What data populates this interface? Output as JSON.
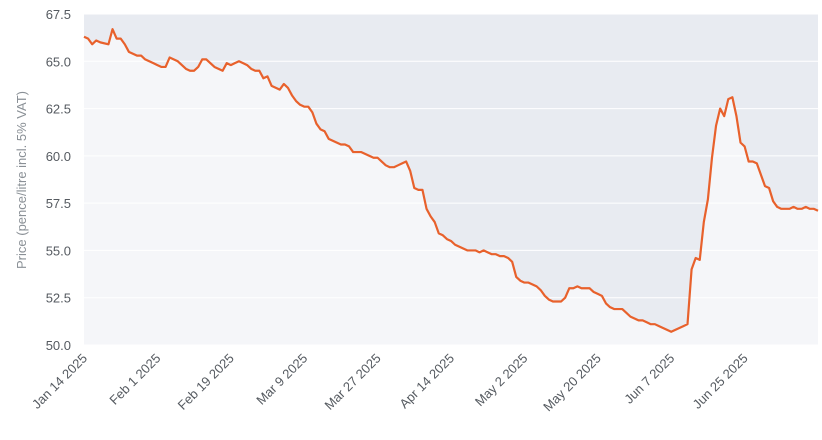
{
  "chart_data": {
    "type": "area",
    "title": "",
    "xlabel": "",
    "ylabel": "Price (pence/litre incl. 5% VAT)",
    "ylim": [
      50.0,
      67.5
    ],
    "xlim": [
      "2025-01-14",
      "2025-07-13"
    ],
    "yticks": [
      "50.0",
      "52.5",
      "55.0",
      "57.5",
      "60.0",
      "62.5",
      "65.0",
      "67.5"
    ],
    "xticks": [
      {
        "date": "2025-01-14",
        "label": "Jan 14 2025"
      },
      {
        "date": "2025-02-01",
        "label": "Feb 1 2025"
      },
      {
        "date": "2025-02-19",
        "label": "Feb 19 2025"
      },
      {
        "date": "2025-03-09",
        "label": "Mar 9 2025"
      },
      {
        "date": "2025-03-27",
        "label": "Mar 27 2025"
      },
      {
        "date": "2025-04-14",
        "label": "Apr 14 2025"
      },
      {
        "date": "2025-05-02",
        "label": "May 2 2025"
      },
      {
        "date": "2025-05-20",
        "label": "May 20 2025"
      },
      {
        "date": "2025-06-07",
        "label": "Jun 7 2025"
      },
      {
        "date": "2025-06-25",
        "label": "Jun 25 2025"
      }
    ],
    "grid": true,
    "colors": {
      "line": "#e8612c",
      "area_above": "#e8ebf1",
      "area_below": "#f5f6f9",
      "grid": "#ffffff"
    },
    "series": [
      {
        "points": [
          [
            "2025-01-14",
            66.3
          ],
          [
            "2025-01-15",
            66.2
          ],
          [
            "2025-01-16",
            65.9
          ],
          [
            "2025-01-17",
            66.1
          ],
          [
            "2025-01-18",
            66.0
          ],
          [
            "2025-01-20",
            65.9
          ],
          [
            "2025-01-21",
            66.7
          ],
          [
            "2025-01-22",
            66.2
          ],
          [
            "2025-01-23",
            66.2
          ],
          [
            "2025-01-24",
            65.9
          ],
          [
            "2025-01-25",
            65.5
          ],
          [
            "2025-01-26",
            65.4
          ],
          [
            "2025-01-27",
            65.3
          ],
          [
            "2025-01-28",
            65.3
          ],
          [
            "2025-01-29",
            65.1
          ],
          [
            "2025-01-30",
            65.0
          ],
          [
            "2025-01-31",
            64.9
          ],
          [
            "2025-02-01",
            64.8
          ],
          [
            "2025-02-02",
            64.7
          ],
          [
            "2025-02-03",
            64.7
          ],
          [
            "2025-02-04",
            65.2
          ],
          [
            "2025-02-05",
            65.1
          ],
          [
            "2025-02-06",
            65.0
          ],
          [
            "2025-02-07",
            64.8
          ],
          [
            "2025-02-08",
            64.6
          ],
          [
            "2025-02-09",
            64.5
          ],
          [
            "2025-02-10",
            64.5
          ],
          [
            "2025-02-11",
            64.7
          ],
          [
            "2025-02-12",
            65.1
          ],
          [
            "2025-02-13",
            65.1
          ],
          [
            "2025-02-14",
            64.9
          ],
          [
            "2025-02-15",
            64.7
          ],
          [
            "2025-02-16",
            64.6
          ],
          [
            "2025-02-17",
            64.5
          ],
          [
            "2025-02-18",
            64.9
          ],
          [
            "2025-02-19",
            64.8
          ],
          [
            "2025-02-20",
            64.9
          ],
          [
            "2025-02-21",
            65.0
          ],
          [
            "2025-02-22",
            64.9
          ],
          [
            "2025-02-23",
            64.8
          ],
          [
            "2025-02-24",
            64.6
          ],
          [
            "2025-02-25",
            64.5
          ],
          [
            "2025-02-26",
            64.5
          ],
          [
            "2025-02-27",
            64.1
          ],
          [
            "2025-02-28",
            64.2
          ],
          [
            "2025-03-01",
            63.7
          ],
          [
            "2025-03-02",
            63.6
          ],
          [
            "2025-03-03",
            63.5
          ],
          [
            "2025-03-04",
            63.8
          ],
          [
            "2025-03-05",
            63.6
          ],
          [
            "2025-03-06",
            63.2
          ],
          [
            "2025-03-07",
            62.9
          ],
          [
            "2025-03-08",
            62.7
          ],
          [
            "2025-03-09",
            62.6
          ],
          [
            "2025-03-10",
            62.6
          ],
          [
            "2025-03-11",
            62.3
          ],
          [
            "2025-03-12",
            61.7
          ],
          [
            "2025-03-13",
            61.4
          ],
          [
            "2025-03-14",
            61.3
          ],
          [
            "2025-03-15",
            60.9
          ],
          [
            "2025-03-16",
            60.8
          ],
          [
            "2025-03-17",
            60.7
          ],
          [
            "2025-03-18",
            60.6
          ],
          [
            "2025-03-19",
            60.6
          ],
          [
            "2025-03-20",
            60.5
          ],
          [
            "2025-03-21",
            60.2
          ],
          [
            "2025-03-22",
            60.2
          ],
          [
            "2025-03-23",
            60.2
          ],
          [
            "2025-03-24",
            60.1
          ],
          [
            "2025-03-25",
            60.0
          ],
          [
            "2025-03-26",
            59.9
          ],
          [
            "2025-03-27",
            59.9
          ],
          [
            "2025-03-28",
            59.7
          ],
          [
            "2025-03-29",
            59.5
          ],
          [
            "2025-03-30",
            59.4
          ],
          [
            "2025-03-31",
            59.4
          ],
          [
            "2025-04-01",
            59.5
          ],
          [
            "2025-04-02",
            59.6
          ],
          [
            "2025-04-03",
            59.7
          ],
          [
            "2025-04-04",
            59.2
          ],
          [
            "2025-04-05",
            58.3
          ],
          [
            "2025-04-06",
            58.2
          ],
          [
            "2025-04-07",
            58.2
          ],
          [
            "2025-04-08",
            57.2
          ],
          [
            "2025-04-09",
            56.8
          ],
          [
            "2025-04-10",
            56.5
          ],
          [
            "2025-04-11",
            55.9
          ],
          [
            "2025-04-12",
            55.8
          ],
          [
            "2025-04-13",
            55.6
          ],
          [
            "2025-04-14",
            55.5
          ],
          [
            "2025-04-15",
            55.3
          ],
          [
            "2025-04-16",
            55.2
          ],
          [
            "2025-04-17",
            55.1
          ],
          [
            "2025-04-18",
            55.0
          ],
          [
            "2025-04-19",
            55.0
          ],
          [
            "2025-04-20",
            55.0
          ],
          [
            "2025-04-21",
            54.9
          ],
          [
            "2025-04-22",
            55.0
          ],
          [
            "2025-04-23",
            54.9
          ],
          [
            "2025-04-24",
            54.8
          ],
          [
            "2025-04-25",
            54.8
          ],
          [
            "2025-04-26",
            54.7
          ],
          [
            "2025-04-27",
            54.7
          ],
          [
            "2025-04-28",
            54.6
          ],
          [
            "2025-04-29",
            54.4
          ],
          [
            "2025-04-30",
            53.6
          ],
          [
            "2025-05-01",
            53.4
          ],
          [
            "2025-05-02",
            53.3
          ],
          [
            "2025-05-03",
            53.3
          ],
          [
            "2025-05-04",
            53.2
          ],
          [
            "2025-05-05",
            53.1
          ],
          [
            "2025-05-06",
            52.9
          ],
          [
            "2025-05-07",
            52.6
          ],
          [
            "2025-05-08",
            52.4
          ],
          [
            "2025-05-09",
            52.3
          ],
          [
            "2025-05-10",
            52.3
          ],
          [
            "2025-05-11",
            52.3
          ],
          [
            "2025-05-12",
            52.5
          ],
          [
            "2025-05-13",
            53.0
          ],
          [
            "2025-05-14",
            53.0
          ],
          [
            "2025-05-15",
            53.1
          ],
          [
            "2025-05-16",
            53.0
          ],
          [
            "2025-05-17",
            53.0
          ],
          [
            "2025-05-18",
            53.0
          ],
          [
            "2025-05-19",
            52.8
          ],
          [
            "2025-05-20",
            52.7
          ],
          [
            "2025-05-21",
            52.6
          ],
          [
            "2025-05-22",
            52.2
          ],
          [
            "2025-05-23",
            52.0
          ],
          [
            "2025-05-24",
            51.9
          ],
          [
            "2025-05-25",
            51.9
          ],
          [
            "2025-05-26",
            51.9
          ],
          [
            "2025-05-27",
            51.7
          ],
          [
            "2025-05-28",
            51.5
          ],
          [
            "2025-05-29",
            51.4
          ],
          [
            "2025-05-30",
            51.3
          ],
          [
            "2025-05-31",
            51.3
          ],
          [
            "2025-06-01",
            51.2
          ],
          [
            "2025-06-02",
            51.1
          ],
          [
            "2025-06-03",
            51.1
          ],
          [
            "2025-06-04",
            51.0
          ],
          [
            "2025-06-05",
            50.9
          ],
          [
            "2025-06-06",
            50.8
          ],
          [
            "2025-06-07",
            50.7
          ],
          [
            "2025-06-08",
            50.8
          ],
          [
            "2025-06-09",
            50.9
          ],
          [
            "2025-06-10",
            51.0
          ],
          [
            "2025-06-11",
            51.1
          ],
          [
            "2025-06-12",
            54.0
          ],
          [
            "2025-06-13",
            54.6
          ],
          [
            "2025-06-14",
            54.5
          ],
          [
            "2025-06-15",
            56.5
          ],
          [
            "2025-06-16",
            57.7
          ],
          [
            "2025-06-17",
            59.9
          ],
          [
            "2025-06-18",
            61.6
          ],
          [
            "2025-06-19",
            62.5
          ],
          [
            "2025-06-20",
            62.1
          ],
          [
            "2025-06-21",
            63.0
          ],
          [
            "2025-06-22",
            63.1
          ],
          [
            "2025-06-23",
            62.1
          ],
          [
            "2025-06-24",
            60.7
          ],
          [
            "2025-06-25",
            60.5
          ],
          [
            "2025-06-26",
            59.7
          ],
          [
            "2025-06-27",
            59.7
          ],
          [
            "2025-06-28",
            59.6
          ],
          [
            "2025-06-29",
            59.0
          ],
          [
            "2025-06-30",
            58.4
          ],
          [
            "2025-07-01",
            58.3
          ],
          [
            "2025-07-02",
            57.6
          ],
          [
            "2025-07-03",
            57.3
          ],
          [
            "2025-07-04",
            57.2
          ],
          [
            "2025-07-05",
            57.2
          ],
          [
            "2025-07-06",
            57.2
          ],
          [
            "2025-07-07",
            57.3
          ],
          [
            "2025-07-08",
            57.2
          ],
          [
            "2025-07-09",
            57.2
          ],
          [
            "2025-07-10",
            57.3
          ],
          [
            "2025-07-11",
            57.2
          ],
          [
            "2025-07-12",
            57.2
          ],
          [
            "2025-07-13",
            57.1
          ]
        ]
      }
    ]
  }
}
